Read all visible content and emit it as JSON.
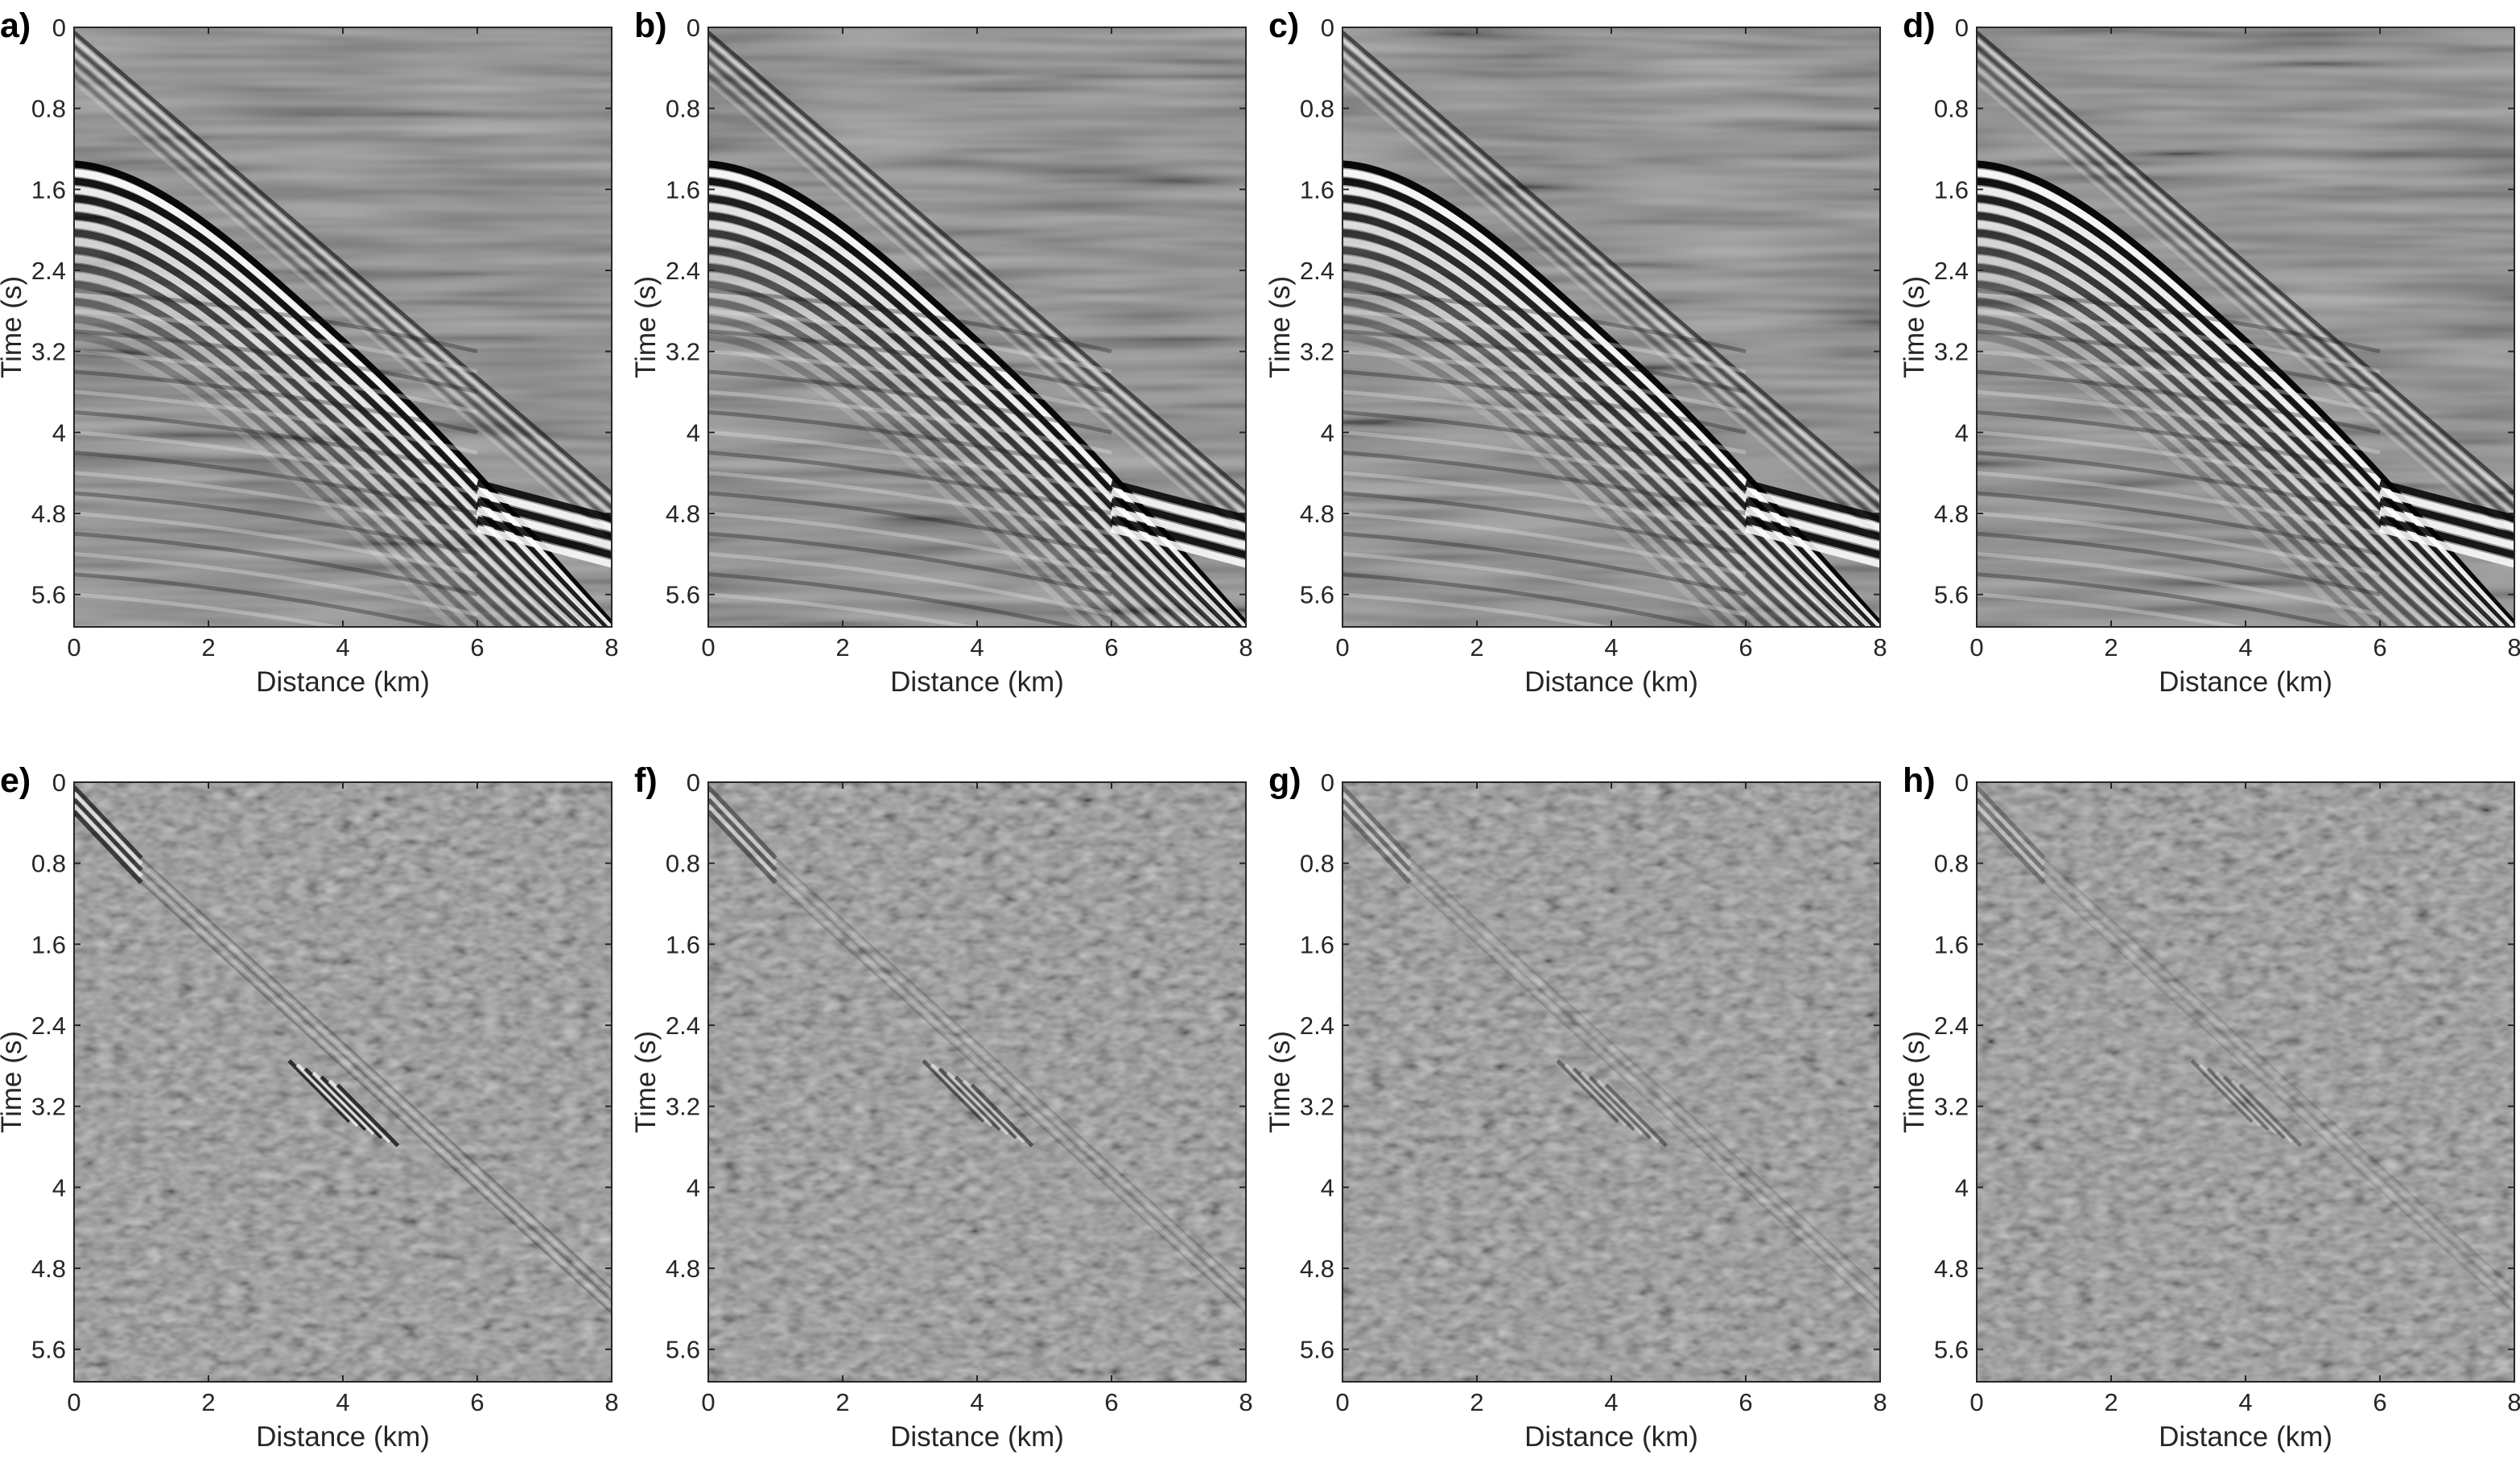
{
  "chart_data": [
    {
      "type": "heatmap",
      "panel": "a)",
      "content": "seismic shot gather",
      "xlabel": "Distance (km)",
      "ylabel": "Time (s)",
      "xlim": [
        0,
        8
      ],
      "ylim": [
        0,
        5.92
      ],
      "y_reversed": true,
      "xticks": [
        0,
        2,
        4,
        6,
        8
      ],
      "yticks": [
        0,
        0.8,
        1.6,
        2.4,
        3.2,
        4,
        4.8,
        5.6
      ],
      "colormap": "gray",
      "events": "strong"
    },
    {
      "type": "heatmap",
      "panel": "b)",
      "content": "seismic shot gather",
      "xlabel": "Distance (km)",
      "ylabel": "Time (s)",
      "xlim": [
        0,
        8
      ],
      "ylim": [
        0,
        5.92
      ],
      "y_reversed": true,
      "xticks": [
        0,
        2,
        4,
        6,
        8
      ],
      "yticks": [
        0,
        0.8,
        1.6,
        2.4,
        3.2,
        4,
        4.8,
        5.6
      ],
      "colormap": "gray",
      "events": "strong"
    },
    {
      "type": "heatmap",
      "panel": "c)",
      "content": "seismic shot gather",
      "xlabel": "Distance (km)",
      "ylabel": "Time (s)",
      "xlim": [
        0,
        8
      ],
      "ylim": [
        0,
        5.92
      ],
      "y_reversed": true,
      "xticks": [
        0,
        2,
        4,
        6,
        8
      ],
      "yticks": [
        0,
        0.8,
        1.6,
        2.4,
        3.2,
        4,
        4.8,
        5.6
      ],
      "colormap": "gray",
      "events": "strong"
    },
    {
      "type": "heatmap",
      "panel": "d)",
      "content": "seismic shot gather",
      "xlabel": "Distance (km)",
      "ylabel": "Time (s)",
      "xlim": [
        0,
        8
      ],
      "ylim": [
        0,
        5.92
      ],
      "y_reversed": true,
      "xticks": [
        0,
        2,
        4,
        6,
        8
      ],
      "yticks": [
        0,
        0.8,
        1.6,
        2.4,
        3.2,
        4,
        4.8,
        5.6
      ],
      "colormap": "gray",
      "events": "strong"
    },
    {
      "type": "heatmap",
      "panel": "e)",
      "content": "residual noise",
      "xlabel": "Distance (km)",
      "ylabel": "Time (s)",
      "xlim": [
        0,
        8
      ],
      "ylim": [
        0,
        5.92
      ],
      "y_reversed": true,
      "xticks": [
        0,
        2,
        4,
        6,
        8
      ],
      "yticks": [
        0,
        0.8,
        1.6,
        2.4,
        3.2,
        4,
        4.8,
        5.6
      ],
      "colormap": "gray",
      "events": "weak",
      "residual_amplitude": 0.9
    },
    {
      "type": "heatmap",
      "panel": "f)",
      "content": "residual noise",
      "xlabel": "Distance (km)",
      "ylabel": "Time (s)",
      "xlim": [
        0,
        8
      ],
      "ylim": [
        0,
        5.92
      ],
      "y_reversed": true,
      "xticks": [
        0,
        2,
        4,
        6,
        8
      ],
      "yticks": [
        0,
        0.8,
        1.6,
        2.4,
        3.2,
        4,
        4.8,
        5.6
      ],
      "colormap": "gray",
      "events": "weak",
      "residual_amplitude": 0.6
    },
    {
      "type": "heatmap",
      "panel": "g)",
      "content": "residual noise",
      "xlabel": "Distance (km)",
      "ylabel": "Time (s)",
      "xlim": [
        0,
        8
      ],
      "ylim": [
        0,
        5.92
      ],
      "y_reversed": true,
      "xticks": [
        0,
        2,
        4,
        6,
        8
      ],
      "yticks": [
        0,
        0.8,
        1.6,
        2.4,
        3.2,
        4,
        4.8,
        5.6
      ],
      "colormap": "gray",
      "events": "weak",
      "residual_amplitude": 0.45
    },
    {
      "type": "heatmap",
      "panel": "h)",
      "content": "residual noise",
      "xlabel": "Distance (km)",
      "ylabel": "Time (s)",
      "xlim": [
        0,
        8
      ],
      "ylim": [
        0,
        5.92
      ],
      "y_reversed": true,
      "xticks": [
        0,
        2,
        4,
        6,
        8
      ],
      "yticks": [
        0,
        0.8,
        1.6,
        2.4,
        3.2,
        4,
        4.8,
        5.6
      ],
      "colormap": "gray",
      "events": "weak",
      "residual_amplitude": 0.4
    }
  ],
  "colors": {
    "background_gray": "#808080",
    "axis": "#262626",
    "frame": "#262626"
  }
}
